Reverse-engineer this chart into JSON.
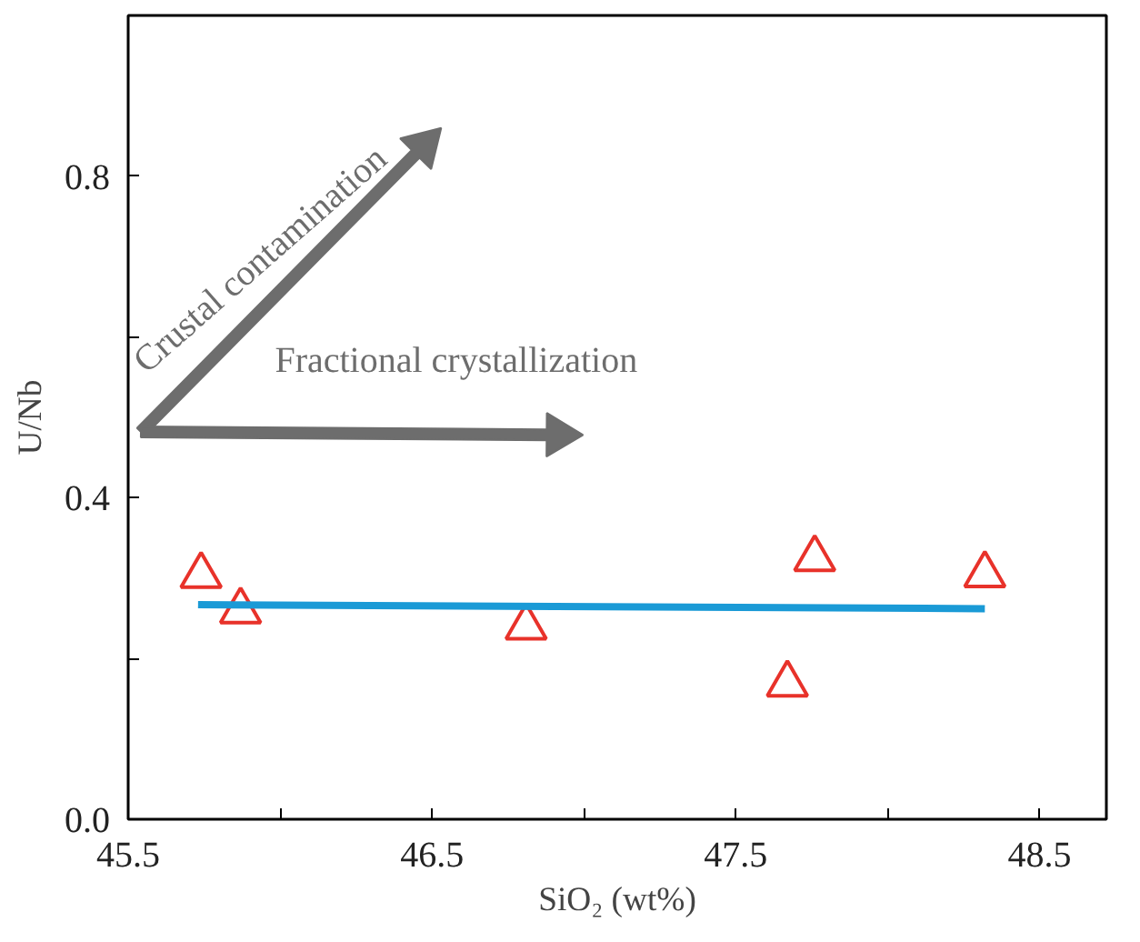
{
  "chart_data": {
    "type": "scatter",
    "xlabel": "SiO₂ (wt%)",
    "ylabel": "U/Nb",
    "xlim": [
      45.5,
      48.72
    ],
    "ylim": [
      0,
      1.0
    ],
    "xticks": [
      45.5,
      {
        "value": 46.0,
        "label": null
      },
      46.5,
      {
        "value": 47.0,
        "label": null
      },
      47.5,
      {
        "value": 48.0,
        "label": null
      },
      48.5
    ],
    "yticks": [
      "0.0",
      {
        "value": 0.2,
        "label": null
      },
      0.4,
      {
        "value": 0.6,
        "label": null
      },
      0.8
    ],
    "grid": false,
    "annotations": [
      "Crustal contamination",
      "Fractional crystallization"
    ],
    "series": [
      {
        "marker": "triangle",
        "color": "#e8322a",
        "x": [
          45.74,
          45.87,
          46.81,
          47.67,
          47.76,
          48.32
        ],
        "values": [
          0.303,
          0.259,
          0.239,
          0.168,
          0.324,
          0.304
        ]
      },
      {
        "type": "line",
        "marker": "none",
        "line_style": "solid",
        "color": "#1a9ad6",
        "x": [
          45.73,
          48.32
        ],
        "values": [
          0.267,
          0.262
        ]
      }
    ]
  }
}
